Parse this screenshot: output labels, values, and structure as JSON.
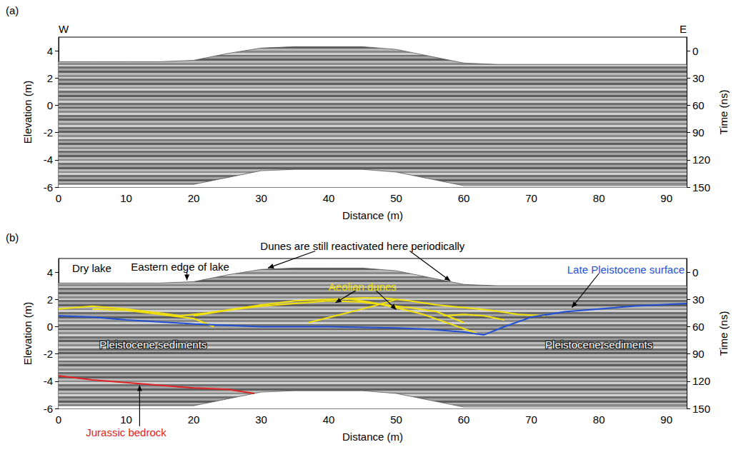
{
  "chart_data": [
    {
      "type": "line",
      "panel": "(a)",
      "xlabel": "Distance (m)",
      "ylabel": "Elevation (m)",
      "y2label": "Time (ns)",
      "xlim": [
        0,
        93
      ],
      "xticks": [
        0,
        10,
        20,
        30,
        40,
        50,
        60,
        70,
        80,
        90
      ],
      "ylim": [
        -6,
        5
      ],
      "yticks": [
        -6,
        -4,
        -2,
        0,
        2,
        4
      ],
      "y2lim": [
        -15,
        150
      ],
      "y2ticks": [
        0,
        30,
        60,
        90,
        120,
        150
      ],
      "grid": false,
      "radargram": {
        "x": [
          0,
          5,
          10,
          15,
          20,
          25,
          30,
          35,
          40,
          45,
          50,
          55,
          60,
          65,
          70,
          80,
          93
        ],
        "top": [
          3.2,
          3.2,
          3.2,
          3.2,
          3.3,
          3.8,
          4.2,
          4.3,
          4.3,
          4.3,
          4.1,
          3.6,
          3.1,
          3.0,
          3.0,
          3.0,
          3.0
        ],
        "bottom": [
          -5.8,
          -5.8,
          -5.8,
          -5.8,
          -5.8,
          -5.3,
          -4.8,
          -4.7,
          -4.7,
          -4.7,
          -4.9,
          -5.4,
          -5.9,
          -5.9,
          -5.9,
          -5.9,
          -5.9
        ]
      },
      "annotations": [
        {
          "text": "W",
          "color": "#000000"
        },
        {
          "text": "E",
          "color": "#000000"
        }
      ]
    },
    {
      "type": "line",
      "panel": "(b)",
      "xlabel": "Distance (m)",
      "ylabel": "Elevation (m)",
      "y2label": "Time (ns)",
      "xlim": [
        0,
        93
      ],
      "xticks": [
        0,
        10,
        20,
        30,
        40,
        50,
        60,
        70,
        80,
        90
      ],
      "ylim": [
        -6,
        5
      ],
      "yticks": [
        -6,
        -4,
        -2,
        0,
        2,
        4
      ],
      "y2lim": [
        -15,
        150
      ],
      "y2ticks": [
        0,
        30,
        60,
        90,
        120,
        150
      ],
      "grid": false,
      "radargram": {
        "x": [
          0,
          5,
          10,
          15,
          20,
          25,
          30,
          35,
          40,
          45,
          50,
          55,
          60,
          65,
          70,
          80,
          93
        ],
        "top": [
          3.2,
          3.2,
          3.2,
          3.2,
          3.3,
          3.8,
          4.2,
          4.3,
          4.3,
          4.3,
          4.1,
          3.6,
          3.1,
          3.0,
          3.0,
          3.0,
          3.0
        ],
        "bottom": [
          -5.8,
          -5.8,
          -5.8,
          -5.8,
          -5.8,
          -5.3,
          -4.8,
          -4.7,
          -4.7,
          -4.7,
          -4.9,
          -5.4,
          -5.9,
          -5.9,
          -5.9,
          -5.9,
          -5.9
        ]
      },
      "series": [
        {
          "name": "Aeolian dunes",
          "color": "#f2e205",
          "lines": [
            {
              "x": [
                0,
                5,
                10,
                15,
                18,
                22,
                26,
                30,
                35,
                40,
                45,
                48,
                52,
                56,
                60,
                64,
                68,
                72
              ],
              "values": [
                1.3,
                1.5,
                1.3,
                1.0,
                0.8,
                1.0,
                1.3,
                1.6,
                1.9,
                2.0,
                2.1,
                2.1,
                1.9,
                1.6,
                1.4,
                1.2,
                0.9,
                0.8
              ]
            },
            {
              "x": [
                5,
                10,
                15,
                20,
                23
              ],
              "values": [
                1.3,
                1.2,
                0.9,
                0.6,
                0.0
              ]
            },
            {
              "x": [
                20,
                25,
                30,
                35,
                40,
                45,
                50
              ],
              "values": [
                0.8,
                1.2,
                1.5,
                1.7,
                1.9,
                1.8,
                1.5
              ]
            },
            {
              "x": [
                37,
                41,
                45,
                48,
                50
              ],
              "values": [
                0.3,
                0.8,
                1.3,
                1.7,
                2.0
              ]
            },
            {
              "x": [
                42,
                46,
                50,
                54,
                58,
                62
              ],
              "values": [
                2.1,
                1.8,
                1.4,
                0.9,
                0.2,
                -0.5
              ]
            },
            {
              "x": [
                48,
                52,
                56,
                60
              ],
              "values": [
                1.6,
                1.4,
                1.1,
                0.3
              ]
            },
            {
              "x": [
                57,
                60,
                63,
                66
              ],
              "values": [
                0.8,
                0.9,
                0.8,
                0.5
              ]
            }
          ]
        },
        {
          "name": "Late Pleistocene surface",
          "color": "#1f4fd6",
          "lines": [
            {
              "x": [
                0,
                5,
                10,
                20,
                30,
                40,
                50,
                55,
                60,
                63,
                66,
                70,
                75,
                80,
                85,
                93
              ],
              "values": [
                0.8,
                0.7,
                0.5,
                0.2,
                0.0,
                0.0,
                -0.1,
                -0.2,
                -0.4,
                -0.6,
                0.0,
                0.7,
                1.1,
                1.3,
                1.5,
                1.7
              ]
            }
          ]
        },
        {
          "name": "Jurassic bedrock",
          "color": "#e32222",
          "lines": [
            {
              "x": [
                0,
                5,
                10,
                15,
                20,
                25,
                29
              ],
              "values": [
                -3.6,
                -3.9,
                -4.1,
                -4.3,
                -4.5,
                -4.6,
                -4.9
              ]
            }
          ]
        }
      ],
      "annotations": [
        {
          "text": "Dry lake",
          "color": "#000000"
        },
        {
          "text": "Eastern edge of lake",
          "color": "#000000"
        },
        {
          "text": "Dunes are still reactivated here periodically",
          "color": "#000000"
        },
        {
          "text": "Pleistocene sediments",
          "color": "#ffffff"
        },
        {
          "text": "Pleistocene sediments",
          "color": "#ffffff"
        }
      ]
    }
  ]
}
